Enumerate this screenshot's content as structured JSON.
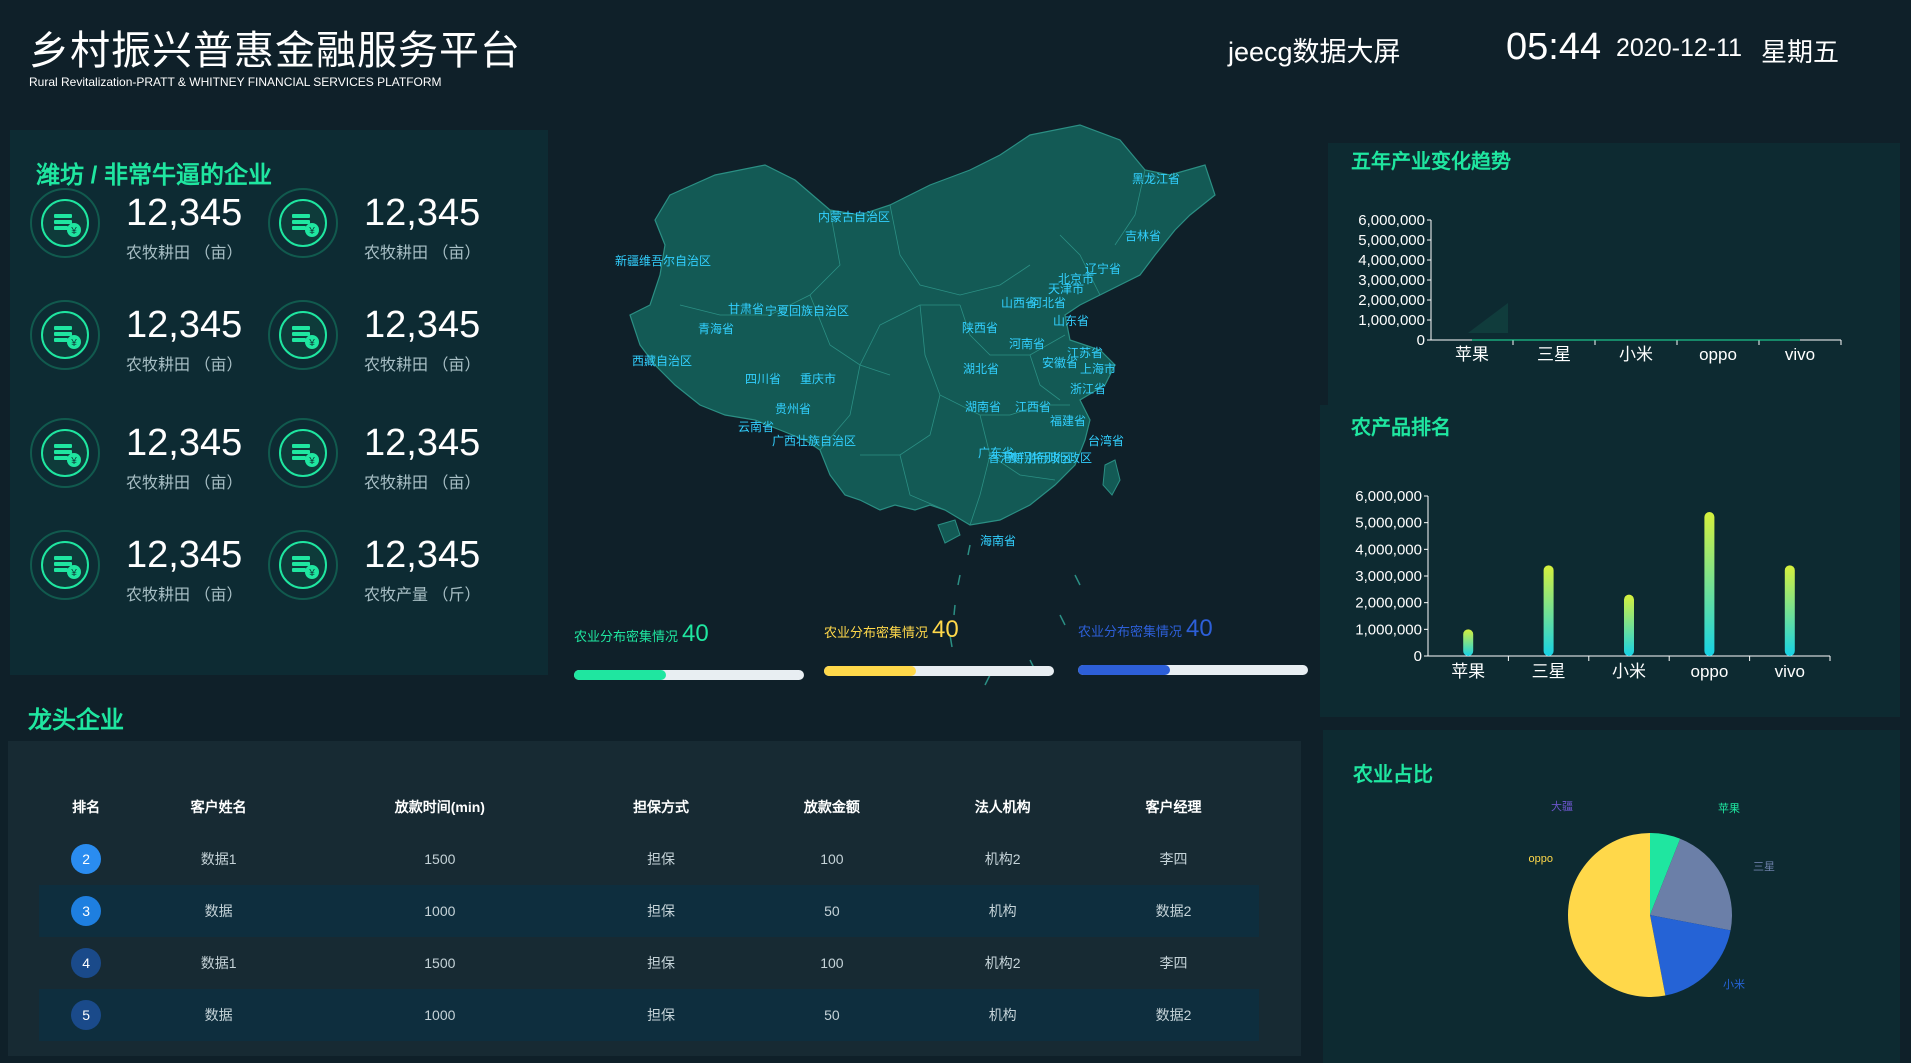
{
  "header": {
    "title": "乡村振兴普惠金融服务平台",
    "subtitle": "Rural Revitalization-PRATT & WHITNEY FINANCIAL SERVICES PLATFORM",
    "brand": "jeecg数据大屏",
    "time": "05:44",
    "date": "2020-12-11",
    "weekday": "星期五"
  },
  "stats_panel": {
    "title": "潍坊 / 非常牛逼的企业",
    "items": [
      {
        "value": "12,345",
        "label": "农牧耕田 （亩）"
      },
      {
        "value": "12,345",
        "label": "农牧耕田 （亩）"
      },
      {
        "value": "12,345",
        "label": "农牧耕田 （亩）"
      },
      {
        "value": "12,345",
        "label": "农牧耕田 （亩）"
      },
      {
        "value": "12,345",
        "label": "农牧耕田 （亩）"
      },
      {
        "value": "12,345",
        "label": "农牧耕田 （亩）"
      },
      {
        "value": "12,345",
        "label": "农牧耕田 （亩）"
      },
      {
        "value": "12,345",
        "label": "农牧产量 （斤）"
      }
    ],
    "icon": "coin-stack-icon"
  },
  "map": {
    "provinces": [
      "黑龙江省",
      "内蒙古自治区",
      "吉林省",
      "新疆维吾尔自治区",
      "辽宁省",
      "北京市",
      "天津市",
      "河北省",
      "甘肃省",
      "宁夏回族自治区",
      "山西省",
      "山东省",
      "青海省",
      "陕西省",
      "河南省",
      "江苏省",
      "安徽省",
      "西藏自治区",
      "四川省",
      "重庆市",
      "湖北省",
      "上海市",
      "浙江省",
      "贵州省",
      "湖南省",
      "江西省",
      "福建省",
      "云南省",
      "广西壮族自治区",
      "广东省",
      "台湾省",
      "香港特别行政区",
      "澳门特别行政区",
      "海南省"
    ],
    "density": [
      {
        "label": "农业分布密集情况",
        "value": "40",
        "color": "#1fe6a0",
        "fill": 0.4
      },
      {
        "label": "农业分布密集情况",
        "value": "40",
        "color": "#ffd84a",
        "fill": 0.4
      },
      {
        "label": "农业分布密集情况",
        "value": "40",
        "color": "#2d5fd8",
        "fill": 0.4
      }
    ]
  },
  "trend_chart": {
    "title": "五年产业变化趋势"
  },
  "ranking_chart": {
    "title": "农产品排名"
  },
  "chart_data": [
    {
      "type": "area",
      "title": "五年产业变化趋势",
      "categories": [
        "苹果",
        "三星",
        "小米",
        "oppo",
        "vivo"
      ],
      "values": [
        0,
        0,
        0,
        0,
        0
      ],
      "ylim": [
        0,
        6000000
      ],
      "yticks": [
        "0",
        "1,000,000",
        "2,000,000",
        "3,000,000",
        "4,000,000",
        "5,000,000",
        "6,000,000"
      ]
    },
    {
      "type": "bar",
      "title": "农产品排名",
      "categories": [
        "苹果",
        "三星",
        "小米",
        "oppo",
        "vivo"
      ],
      "values": [
        1000000,
        3400000,
        2300000,
        5400000,
        3400000
      ],
      "ylim": [
        0,
        6000000
      ],
      "yticks": [
        "0",
        "1,000,000",
        "2,000,000",
        "3,000,000",
        "4,000,000",
        "5,000,000",
        "6,000,000"
      ],
      "colors": {
        "top": "#d6f03c",
        "bottom": "#16d2e6"
      }
    },
    {
      "type": "pie",
      "title": "农业占比",
      "slices": [
        {
          "name": "苹果",
          "value": 6,
          "color": "#1fe6a0"
        },
        {
          "name": "三星",
          "value": 22,
          "color": "#6b7fa8"
        },
        {
          "name": "小米",
          "value": 19,
          "color": "#2563d6"
        },
        {
          "name": "oppo",
          "value": 53,
          "color": "#ffd84a"
        },
        {
          "name": "大疆",
          "value": 0,
          "color": "#6a55c9"
        }
      ]
    }
  ],
  "leaders": {
    "title": "龙头企业",
    "columns": [
      "排名",
      "客户姓名",
      "放款时间(min)",
      "担保方式",
      "放款金额",
      "法人机构",
      "客户经理"
    ],
    "rows": [
      {
        "rank": "2",
        "name": "数据1",
        "time": "1500",
        "guarantee": "担保",
        "amount": "100",
        "org": "机构2",
        "manager": "李四"
      },
      {
        "rank": "3",
        "name": "数据",
        "time": "1000",
        "guarantee": "担保",
        "amount": "50",
        "org": "机构",
        "manager": "数据2"
      },
      {
        "rank": "4",
        "name": "数据1",
        "time": "1500",
        "guarantee": "担保",
        "amount": "100",
        "org": "机构2",
        "manager": "李四"
      },
      {
        "rank": "5",
        "name": "数据",
        "time": "1000",
        "guarantee": "担保",
        "amount": "50",
        "org": "机构",
        "manager": "数据2"
      }
    ]
  },
  "pie_panel": {
    "title": "农业占比"
  }
}
